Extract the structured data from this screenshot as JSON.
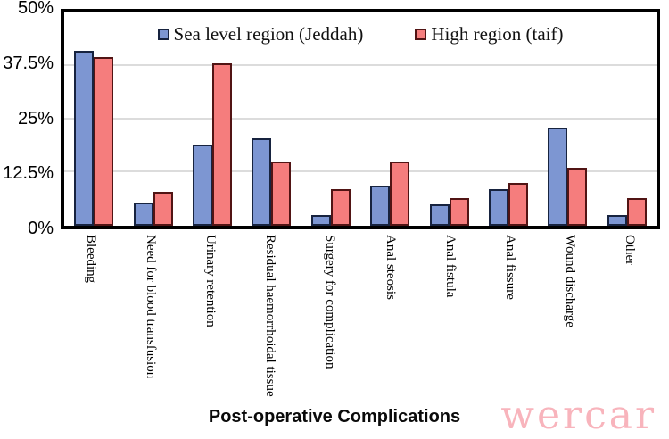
{
  "watermark": "wercar",
  "colors": {
    "series1_fill": "#7d96d2",
    "series1_border": "#17233f",
    "series2_fill": "#f57d7d",
    "series2_border": "#511414",
    "gridline": "#dcdcdc",
    "plot_border": "#000000",
    "watermark_color": "#f8b4bc"
  },
  "chart_data": {
    "type": "bar",
    "title": "Post-operative Complications",
    "xlabel": "Post-operative Complications",
    "ylabel": "",
    "ylim": [
      0,
      50
    ],
    "yticks": [
      "0%",
      "12.5%",
      "25%",
      "37.5%",
      "50%"
    ],
    "ytick_values": [
      0,
      12.5,
      25,
      37.5,
      50
    ],
    "grid": "horizontal",
    "legend_position": "top-inside",
    "categories": [
      "Bleeding",
      "Need for blood transfusion",
      "Urinary retention",
      "Residual haemorrhoidal tissue",
      "Surgery for complication",
      "Anal steosis",
      "Anal fistula",
      "Anal fissure",
      "Wound discharge",
      "Other"
    ],
    "series": [
      {
        "name": "Sea level region (Jeddah)",
        "values": [
          41.0,
          5.5,
          19.0,
          20.5,
          2.5,
          9.5,
          5.0,
          8.5,
          23.0,
          2.5
        ]
      },
      {
        "name": "High region (taif)",
        "values": [
          39.5,
          8.0,
          38.0,
          15.0,
          8.5,
          15.0,
          6.5,
          10.0,
          13.5,
          6.5
        ]
      }
    ]
  }
}
